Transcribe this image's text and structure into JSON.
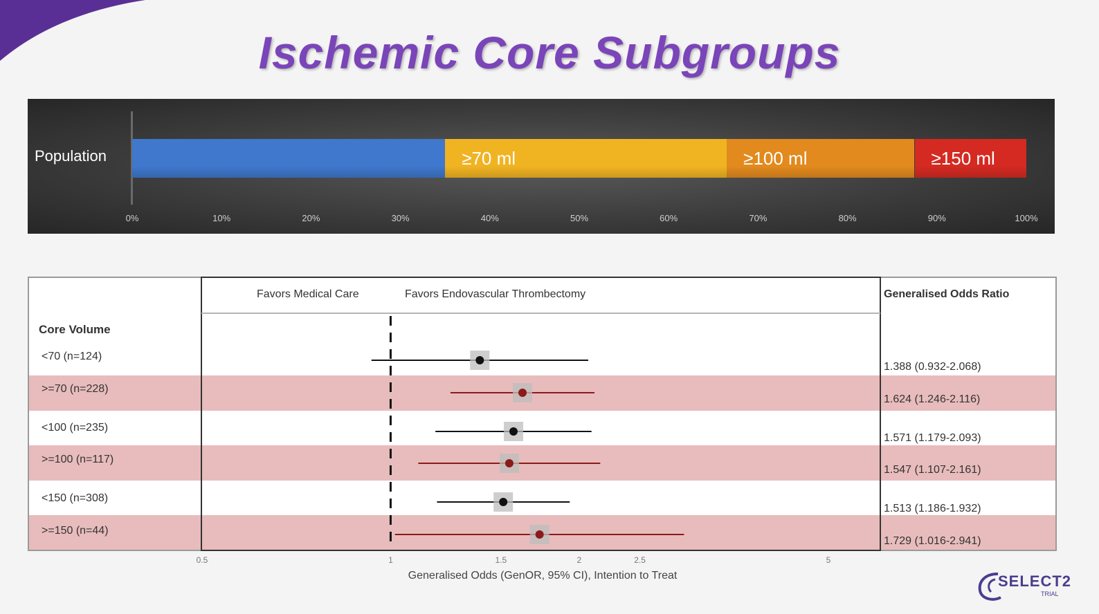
{
  "slide_title": "Ischemic Core Subgroups",
  "colors": {
    "title": "#7a45b8",
    "blue": "#3f78cc",
    "yellow": "#f0b322",
    "orange": "#e28a1e",
    "red": "#d42a22",
    "row_shade": "#e8bcbc",
    "marker_white_row": "#111111",
    "marker_red_row": "#8b1a1a"
  },
  "chart_data": [
    {
      "type": "bar",
      "orientation": "horizontal-stacked",
      "category_label": "Population",
      "segments": [
        {
          "label": "",
          "start": 0,
          "end": 35,
          "color": "#3f78cc"
        },
        {
          "label": "≥70 ml",
          "start": 35,
          "end": 66.5,
          "color": "#f0b322"
        },
        {
          "label": "≥100 ml",
          "start": 66.5,
          "end": 87.5,
          "color": "#e28a1e"
        },
        {
          "label": "≥150 ml",
          "start": 87.5,
          "end": 100,
          "color": "#d42a22"
        }
      ],
      "xticks": [
        "0%",
        "10%",
        "20%",
        "30%",
        "40%",
        "50%",
        "60%",
        "70%",
        "80%",
        "90%",
        "100%"
      ],
      "xlim": [
        0,
        100
      ]
    },
    {
      "type": "scatter",
      "subtype": "forest-plot",
      "left_header": "Favors Medical Care",
      "right_header": "Favors Endovascular Thrombectomy",
      "row_header": "Core Volume",
      "value_header": "Generalised Odds Ratio",
      "xlabel": "Generalised Odds (GenOR, 95% CI), Intention to Treat",
      "xscale": "log",
      "xlim": [
        0.5,
        6
      ],
      "xticks": [
        {
          "value": 0.5,
          "label": "0.5"
        },
        {
          "value": 1,
          "label": "1"
        },
        {
          "value": 1.5,
          "label": "1.5"
        },
        {
          "value": 2,
          "label": "2"
        },
        {
          "value": 2.5,
          "label": "2.5"
        },
        {
          "value": 5,
          "label": "5"
        }
      ],
      "reference_line": 1,
      "rows": [
        {
          "label": "<70 (n=124)",
          "or": 1.388,
          "lo": 0.932,
          "hi": 2.068,
          "text": "1.388 (0.932-2.068)",
          "shaded": false
        },
        {
          "label": ">=70 (n=228)",
          "or": 1.624,
          "lo": 1.246,
          "hi": 2.116,
          "text": "1.624 (1.246-2.116)",
          "shaded": true
        },
        {
          "label": "<100 (n=235)",
          "or": 1.571,
          "lo": 1.179,
          "hi": 2.093,
          "text": "1.571 (1.179-2.093)",
          "shaded": false
        },
        {
          "label": ">=100 (n=117)",
          "or": 1.547,
          "lo": 1.107,
          "hi": 2.161,
          "text": "1.547 (1.107-2.161)",
          "shaded": true
        },
        {
          "label": "<150 (n=308)",
          "or": 1.513,
          "lo": 1.186,
          "hi": 1.932,
          "text": "1.513 (1.186-1.932)",
          "shaded": false
        },
        {
          "label": ">=150 (n=44)",
          "or": 1.729,
          "lo": 1.016,
          "hi": 2.941,
          "text": "1.729 (1.016-2.941)",
          "shaded": true
        }
      ]
    }
  ],
  "logo": {
    "name": "SELECT2",
    "sub": "TRIAL"
  }
}
